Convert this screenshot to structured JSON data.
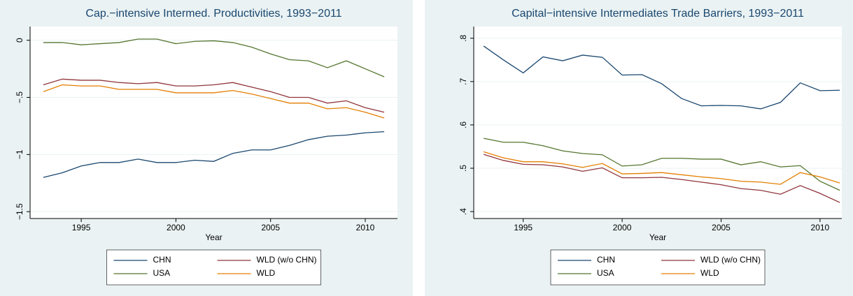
{
  "chart_data": [
    {
      "type": "line",
      "title": "Cap.−intensive Intermed. Productivities, 1993−2011",
      "xlabel": "Year",
      "x": [
        1993,
        1994,
        1995,
        1996,
        1997,
        1998,
        1999,
        2000,
        2001,
        2002,
        2003,
        2004,
        2005,
        2006,
        2007,
        2008,
        2009,
        2010,
        2011
      ],
      "series": [
        {
          "name": "CHN",
          "color": "#1a476f",
          "values": [
            -1.2,
            -1.16,
            -1.1,
            -1.07,
            -1.07,
            -1.04,
            -1.07,
            -1.07,
            -1.05,
            -1.06,
            -0.99,
            -0.96,
            -0.96,
            -0.92,
            -0.87,
            -0.84,
            -0.83,
            -0.81,
            -0.8
          ]
        },
        {
          "name": "WLD (w/o CHN)",
          "color": "#90353b",
          "values": [
            -0.39,
            -0.34,
            -0.35,
            -0.35,
            -0.37,
            -0.38,
            -0.37,
            -0.4,
            -0.4,
            -0.39,
            -0.37,
            -0.41,
            -0.45,
            -0.5,
            -0.5,
            -0.55,
            -0.53,
            -0.59,
            -0.63
          ]
        },
        {
          "name": "USA",
          "color": "#55752f",
          "values": [
            -0.02,
            -0.02,
            -0.04,
            -0.03,
            -0.02,
            0.01,
            0.01,
            -0.03,
            -0.01,
            -0.005,
            -0.02,
            -0.06,
            -0.12,
            -0.17,
            -0.18,
            -0.24,
            -0.18,
            -0.25,
            -0.32
          ]
        },
        {
          "name": "WLD",
          "color": "#e37e00",
          "values": [
            -0.45,
            -0.39,
            -0.4,
            -0.4,
            -0.43,
            -0.43,
            -0.43,
            -0.46,
            -0.46,
            -0.46,
            -0.44,
            -0.47,
            -0.51,
            -0.55,
            -0.55,
            -0.6,
            -0.59,
            -0.63,
            -0.68
          ]
        }
      ],
      "xlim": [
        1992.3,
        2011.7
      ],
      "ylim": [
        -1.56,
        0.12
      ],
      "xticks": [
        1995,
        2000,
        2005,
        2010
      ],
      "yticks": [
        0,
        {
          "value": -0.5,
          "label": "−.5"
        },
        {
          "value": -1,
          "label": "−1"
        },
        {
          "value": -1.5,
          "label": "−1.5"
        }
      ],
      "grid": true,
      "legend": "bottom"
    },
    {
      "type": "line",
      "title": "Capital−intensive Intermediates Trade Barriers, 1993−2011",
      "xlabel": "Year",
      "x": [
        1993,
        1994,
        1995,
        1996,
        1997,
        1998,
        1999,
        2000,
        2001,
        2002,
        2003,
        2004,
        2005,
        2006,
        2007,
        2008,
        2009,
        2010,
        2011
      ],
      "series": [
        {
          "name": "CHN",
          "color": "#1a476f",
          "values": [
            0.782,
            0.75,
            0.72,
            0.757,
            0.748,
            0.761,
            0.756,
            0.715,
            0.716,
            0.695,
            0.661,
            0.644,
            0.645,
            0.644,
            0.637,
            0.652,
            0.697,
            0.679,
            0.68
          ]
        },
        {
          "name": "WLD (w/o CHN)",
          "color": "#90353b",
          "values": [
            0.532,
            0.518,
            0.509,
            0.508,
            0.503,
            0.493,
            0.501,
            0.478,
            0.478,
            0.479,
            0.474,
            0.468,
            0.462,
            0.453,
            0.449,
            0.44,
            0.46,
            0.442,
            0.421
          ]
        },
        {
          "name": "USA",
          "color": "#55752f",
          "values": [
            0.569,
            0.56,
            0.56,
            0.552,
            0.54,
            0.534,
            0.531,
            0.505,
            0.508,
            0.523,
            0.523,
            0.521,
            0.521,
            0.508,
            0.515,
            0.503,
            0.506,
            0.47,
            0.449
          ]
        },
        {
          "name": "WLD",
          "color": "#e37e00",
          "values": [
            0.538,
            0.524,
            0.515,
            0.515,
            0.51,
            0.502,
            0.511,
            0.487,
            0.488,
            0.49,
            0.485,
            0.48,
            0.476,
            0.47,
            0.468,
            0.463,
            0.49,
            0.48,
            0.466
          ]
        }
      ],
      "xlim": [
        1992.5,
        2011.1
      ],
      "ylim": [
        0.384,
        0.827
      ],
      "xticks": [
        1995,
        2000,
        2005,
        2010
      ],
      "yticks": [
        {
          "value": 0.8,
          "label": ".8"
        },
        {
          "value": 0.7,
          "label": ".7"
        },
        {
          "value": 0.6,
          "label": ".6"
        },
        {
          "value": 0.5,
          "label": ".5"
        },
        {
          "value": 0.4,
          "label": ".4"
        }
      ],
      "grid": true,
      "legend": "bottom"
    }
  ]
}
